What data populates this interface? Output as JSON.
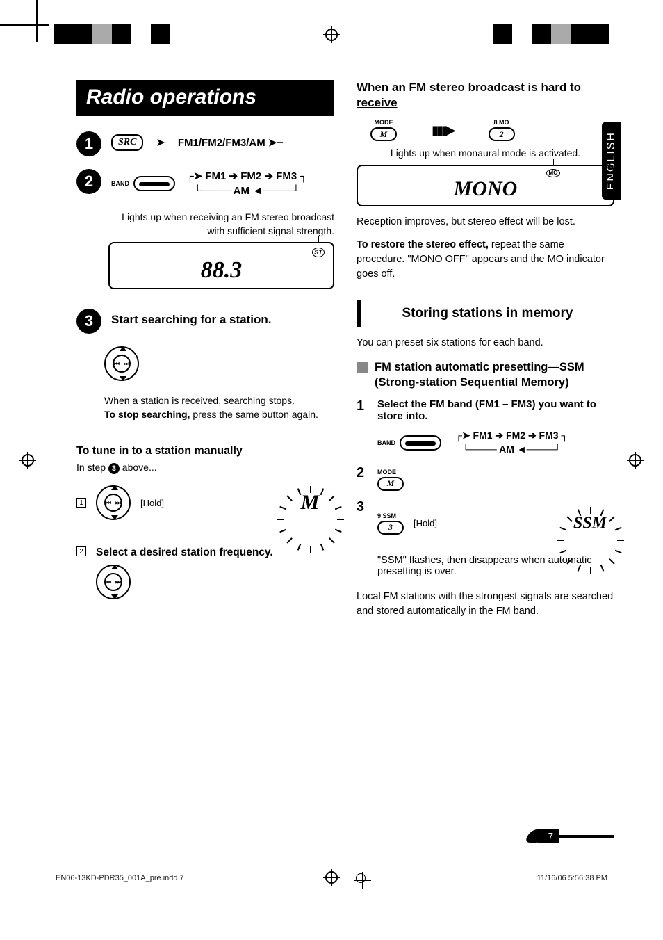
{
  "title": "Radio operations",
  "lang_tab": "ENGLISH",
  "topbar_colors_left": [
    "#000000",
    "#000000",
    "#aaaaaa",
    "#000000",
    "#ffffff",
    "#000000",
    "#ffffff"
  ],
  "topbar_colors_right": [
    "#ffffff",
    "#000000",
    "#ffffff",
    "#000000",
    "#aaaaaa",
    "#000000",
    "#000000"
  ],
  "step1": {
    "num": "!",
    "src_label": "SRC",
    "arrow_text": "FM1/FM2/FM3/AM"
  },
  "step2": {
    "num": "⁄",
    "band_label": "BAND",
    "cycle_top": "FM1      FM2      FM3",
    "cycle_bottom": "AM"
  },
  "lcd_caption": "Lights up when receiving an FM stereo broadcast with sufficient signal strength.",
  "lcd": {
    "st": "ST",
    "freq": "88.3"
  },
  "step3": {
    "num": "Ÿ",
    "title": "Start searching for a station.",
    "note1": "When a station is received, searching stops.",
    "note2_b": "To stop searching,",
    "note2_r": " press the same button again."
  },
  "manual": {
    "heading": "To tune in to a station manually",
    "instep_a": "In step ",
    "instep_b": " above...",
    "box1": "1",
    "hold": "[Hold]",
    "sun1": "M",
    "box2": "2",
    "step2_text": "Select a desired station frequency."
  },
  "right": {
    "h2": "When an FM stereo broadcast is hard to receive",
    "mode_lbl": "MODE",
    "mode_btn": "M",
    "mo_lbl": "8   MO",
    "mo_btn": "2",
    "caption_mono": "Lights up when monaural mode is activated.",
    "lcd_mo": "MO",
    "lcd_mono": "MONO",
    "para1": "Reception improves, but stereo effect will be lost.",
    "para2_b": "To restore the stereo effect,",
    "para2_r": " repeat the same procedure. \"MONO OFF\" appears and the MO indicator goes off.",
    "section": "Storing stations in memory",
    "preset_text": "You can preset six stations for each band.",
    "fm_heading": "FM station automatic presetting—SSM (Strong-station Sequential Memory)",
    "ol1_num": "1",
    "ol1_text": "Select the FM band (FM1 – FM3) you want to store into.",
    "band_label": "BAND",
    "cycle_top": "FM1      FM2      FM3",
    "cycle_bottom": "AM",
    "ol2_num": "2",
    "mode2_lbl": "MODE",
    "mode2_btn": "M",
    "ol3_num": "3",
    "ssm_lbl": "9   SSM",
    "ssm_btn": "3",
    "hold": "[Hold]",
    "sun_ssm": "SSM",
    "ssm_note": "\"SSM\" flashes, then disappears when automatic presetting is over.",
    "local_note": "Local FM stations with the strongest signals are searched and stored automatically in the FM band."
  },
  "page_number": "7",
  "footer_left": "EN06-13KD-PDR35_001A_pre.indd   7",
  "footer_right": "11/16/06   5:56:38 PM"
}
